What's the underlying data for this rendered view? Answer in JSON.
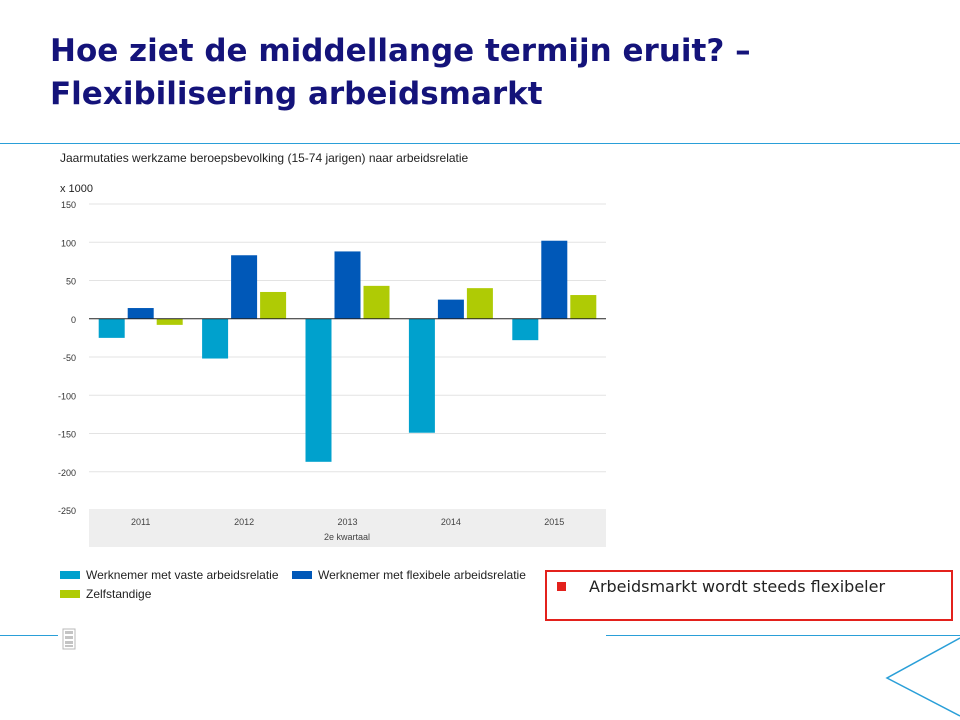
{
  "slide": {
    "title_line1": "Hoe ziet de middellange termijn eruit? –",
    "title_line2": "Flexibilisering arbeidsmarkt",
    "callout_text": "Arbeidsmarkt wordt steeds flexibeler"
  },
  "chart_data": {
    "type": "bar",
    "title": "Jaarmutaties werkzame beroepsbevolking (15-74 jarigen) naar arbeidsrelatie",
    "ylabel": "x 1000",
    "categories": [
      "2011",
      "2012",
      "2013",
      "2014",
      "2015"
    ],
    "xlabel": "2e kwartaal",
    "ylim": [
      -250,
      150
    ],
    "yticks": [
      150,
      100,
      50,
      0,
      -50,
      -100,
      -150,
      -200,
      -250
    ],
    "grid": true,
    "legend_position": "bottom-left",
    "series": [
      {
        "name": "Werknemer met vaste arbeidsrelatie",
        "color": "#00a1cd",
        "values": [
          -25,
          -52,
          -187,
          -149,
          -28
        ]
      },
      {
        "name": "Werknemer met flexibele arbeidsrelatie",
        "color": "#0058b8",
        "values": [
          14,
          83,
          88,
          25,
          102
        ]
      },
      {
        "name": "Zelfstandige",
        "color": "#afcb05",
        "values": [
          -8,
          35,
          43,
          40,
          31
        ]
      }
    ]
  },
  "colors": {
    "title": "#14137a",
    "accent_line": "#2a9fd8",
    "callout_border": "#e3211c"
  },
  "icons": {
    "logo": "cbs-logo-icon",
    "corner": "arrow-outline-icon"
  }
}
